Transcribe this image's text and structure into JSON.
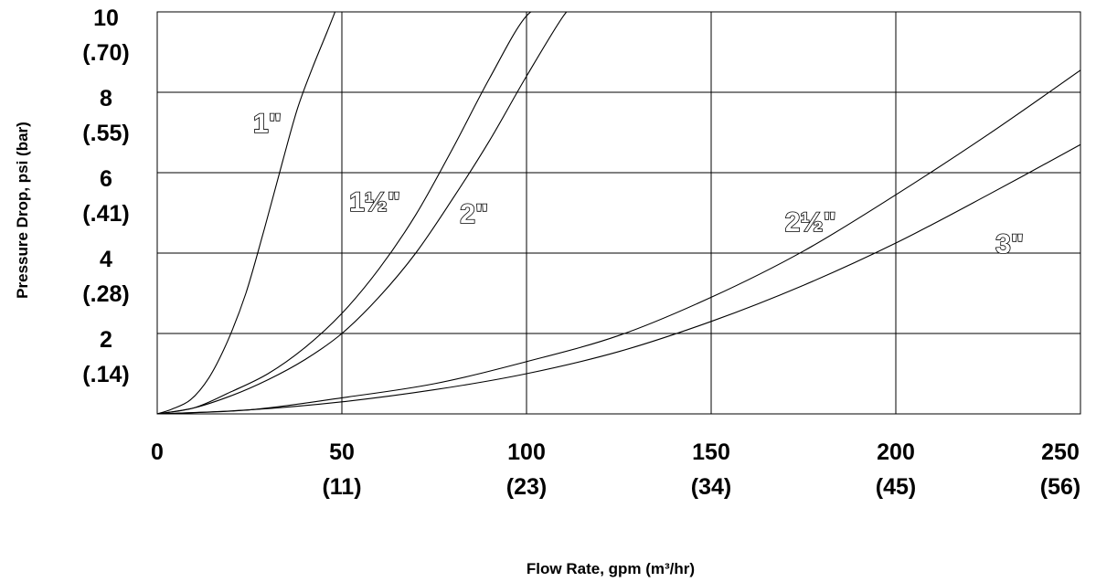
{
  "chart_data": {
    "type": "line",
    "title": "",
    "xlabel": "Flow Rate, gpm (m³/hr)",
    "ylabel": "Pressure Drop, psi (bar)",
    "xlim": [
      0,
      250
    ],
    "ylim": [
      0,
      10
    ],
    "grid": true,
    "x_ticks": [
      {
        "value": 0,
        "label": "0",
        "sublabel": ""
      },
      {
        "value": 50,
        "label": "50",
        "sublabel": "(11)"
      },
      {
        "value": 100,
        "label": "100",
        "sublabel": "(23)"
      },
      {
        "value": 150,
        "label": "150",
        "sublabel": "(34)"
      },
      {
        "value": 200,
        "label": "200",
        "sublabel": "(45)"
      },
      {
        "value": 250,
        "label": "250",
        "sublabel": "(56)"
      }
    ],
    "y_ticks": [
      {
        "value": 2,
        "label": "2",
        "sublabel": "(.14)"
      },
      {
        "value": 4,
        "label": "4",
        "sublabel": "(.28)"
      },
      {
        "value": 6,
        "label": "6",
        "sublabel": "(.41)"
      },
      {
        "value": 8,
        "label": "8",
        "sublabel": "(.55)"
      },
      {
        "value": 10,
        "label": "10",
        "sublabel": "(.70)"
      }
    ],
    "series": [
      {
        "name": "1\"",
        "label_at": [
          26,
          7.0
        ],
        "x": [
          0,
          4,
          9,
          14,
          19,
          24,
          29,
          34,
          38,
          42,
          46,
          49
        ],
        "y": [
          0,
          0.12,
          0.35,
          0.9,
          1.8,
          3.0,
          4.6,
          6.3,
          7.6,
          8.6,
          9.5,
          10.2
        ]
      },
      {
        "name": "1½\"",
        "label_at": [
          52,
          5.05
        ],
        "x": [
          0,
          10,
          20,
          30,
          40,
          50,
          60,
          70,
          80,
          90,
          100,
          108
        ],
        "y": [
          0,
          0.15,
          0.55,
          1.0,
          1.65,
          2.5,
          3.6,
          4.95,
          6.6,
          8.35,
          9.9,
          10.2
        ]
      },
      {
        "name": "2\"",
        "label_at": [
          82,
          4.75
        ],
        "x": [
          0,
          10,
          20,
          30,
          40,
          50,
          60,
          70,
          80,
          90,
          100,
          110,
          114
        ],
        "y": [
          0,
          0.15,
          0.45,
          0.85,
          1.35,
          2.0,
          2.9,
          4.0,
          5.35,
          6.8,
          8.4,
          9.9,
          10.2
        ]
      },
      {
        "name": "2½\"",
        "label_at": [
          170,
          4.55
        ],
        "x": [
          0,
          25,
          50,
          75,
          100,
          125,
          150,
          175,
          200,
          225,
          250,
          253
        ],
        "y": [
          0,
          0.1,
          0.4,
          0.75,
          1.3,
          1.95,
          2.9,
          4.05,
          5.45,
          6.95,
          8.55,
          8.75
        ]
      },
      {
        "name": "3\"",
        "label_at": [
          227,
          4.0
        ],
        "x": [
          0,
          25,
          50,
          75,
          100,
          125,
          150,
          175,
          200,
          225,
          250,
          253
        ],
        "y": [
          0,
          0.1,
          0.3,
          0.6,
          1.0,
          1.55,
          2.3,
          3.2,
          4.25,
          5.45,
          6.7,
          6.9
        ]
      }
    ]
  }
}
